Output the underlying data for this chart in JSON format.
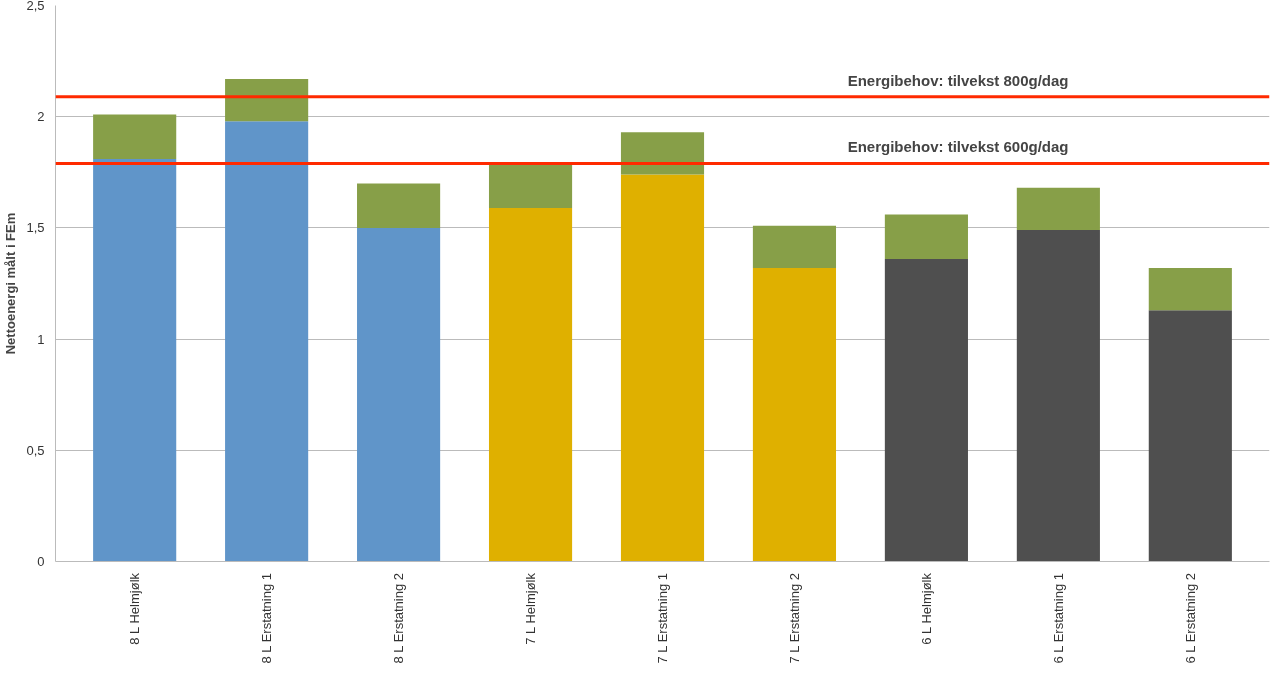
{
  "chart_data": {
    "type": "bar",
    "stacked": true,
    "ylabel": "Nettoenergi målt i FEm",
    "categories": [
      "8 L Helmjølk",
      "8 L Erstatning 1",
      "8 L Erstatning 2",
      "7 L Helmjølk",
      "7 L Erstatning 1",
      "7 L Erstatning 2",
      "6 L Helmjølk",
      "6 L Erstatning 1",
      "6 L Erstatning 2"
    ],
    "series": [
      {
        "colors": [
          "#6095c9",
          "#6095c9",
          "#6095c9",
          "#dfb000",
          "#dfb000",
          "#dfb000",
          "#4f4f4f",
          "#4f4f4f",
          "#4f4f4f"
        ],
        "values": [
          1.81,
          1.98,
          1.5,
          1.59,
          1.74,
          1.32,
          1.36,
          1.49,
          1.13
        ]
      },
      {
        "color": "#879f48",
        "values": [
          0.2,
          0.19,
          0.2,
          0.2,
          0.19,
          0.19,
          0.2,
          0.19,
          0.19
        ]
      }
    ],
    "ylim": [
      0,
      2.5
    ],
    "yticks": [
      0,
      {
        "value": 0.5,
        "label": "0,5"
      },
      1,
      {
        "value": 1.5,
        "label": "1,5"
      },
      2,
      {
        "value": 2.5,
        "label": "2,5"
      }
    ],
    "grid": "y",
    "ref_lines": [
      {
        "axis": "y",
        "value": 2.09,
        "label": "Energibehov: tilvekst 800g/dag",
        "color": "#ff2a00"
      },
      {
        "axis": "y",
        "value": 1.79,
        "label": "Energibehov: tilvekst 600g/dag",
        "color": "#ff2a00"
      }
    ]
  }
}
